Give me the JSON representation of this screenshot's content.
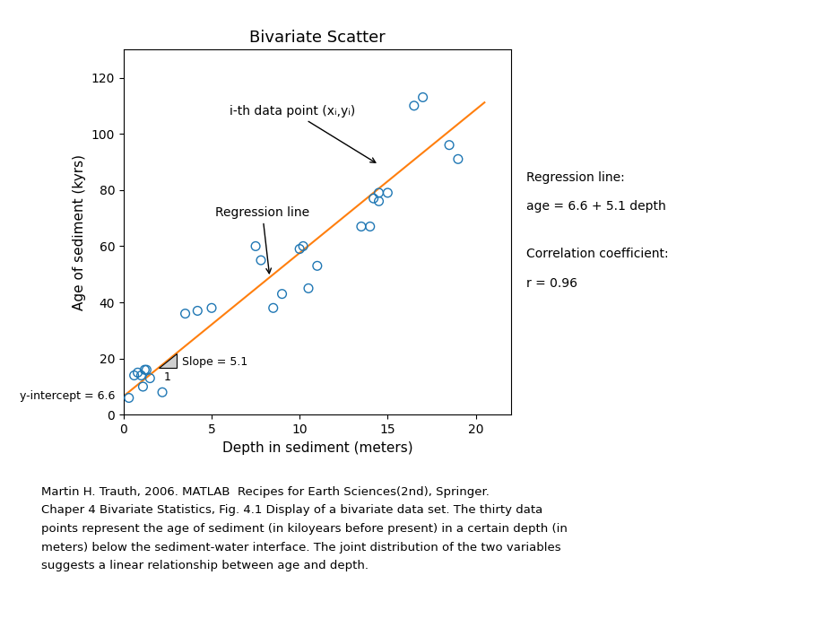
{
  "chart_data": {
    "type": "scatter",
    "title": "Bivariate Scatter",
    "x_label": "Depth in sediment (meters)",
    "y_label": "Age of sediment (kyrs)",
    "xlim": [
      0,
      22
    ],
    "ylim": [
      0,
      130
    ],
    "xticks": [
      0,
      5,
      10,
      15,
      20
    ],
    "yticks": [
      0,
      20,
      40,
      60,
      80,
      100,
      120
    ],
    "marker": "open circle",
    "x": [
      0.3,
      0.6,
      0.8,
      1.0,
      1.1,
      1.2,
      1.3,
      1.5,
      2.2,
      3.5,
      4.2,
      5.0,
      7.5,
      7.8,
      8.5,
      9.0,
      10.0,
      10.2,
      10.5,
      11.0,
      13.5,
      14.0,
      14.2,
      14.5,
      14.5,
      15.0,
      16.5,
      17.0,
      18.5,
      19.0
    ],
    "values": [
      6,
      14,
      15,
      14,
      10,
      16,
      16,
      13,
      8,
      36,
      37,
      38,
      60,
      55,
      38,
      43,
      59,
      60,
      45,
      53,
      67,
      67,
      77,
      76,
      79,
      79,
      110,
      113,
      96,
      91
    ],
    "regression_line": {
      "type": "line",
      "line_style": "solid",
      "x": [
        0,
        20.5
      ],
      "values": [
        6.6,
        111.15
      ]
    },
    "slope_triangle": {
      "x": [
        2.0,
        3.0,
        3.0
      ],
      "values": [
        16.8,
        16.8,
        21.9
      ]
    },
    "slope_label": "Slope = 5.1",
    "slope_run_label": "1",
    "intercept": {
      "value": 6.6,
      "label": "y-intercept = 6.6"
    },
    "annotations": [
      {
        "text": "Regression line",
        "x": 8.3,
        "y": 48.93
      },
      {
        "text": "i-th data point (xᵢ,yᵢ)",
        "x": 14.5,
        "y": 89
      }
    ],
    "side_texts": [
      "Regression line:",
      "age = 6.6 + 5.1 depth",
      "Correlation coefficient:",
      "r = 0.96"
    ],
    "caption": [
      "Martin H. Trauth, 2006. MATLAB  Recipes for Earth Sciences(2nd), Springer.",
      "Chaper 4 Bivariate Statistics, Fig. 4.1 Display of a bivariate data set. The thirty data",
      "points represent the age of sediment (in kiloyears before present) in a certain depth (in",
      "meters) below the sediment-water interface. The joint distribution of the two variables",
      "suggests a linear relationship between age and depth."
    ]
  }
}
